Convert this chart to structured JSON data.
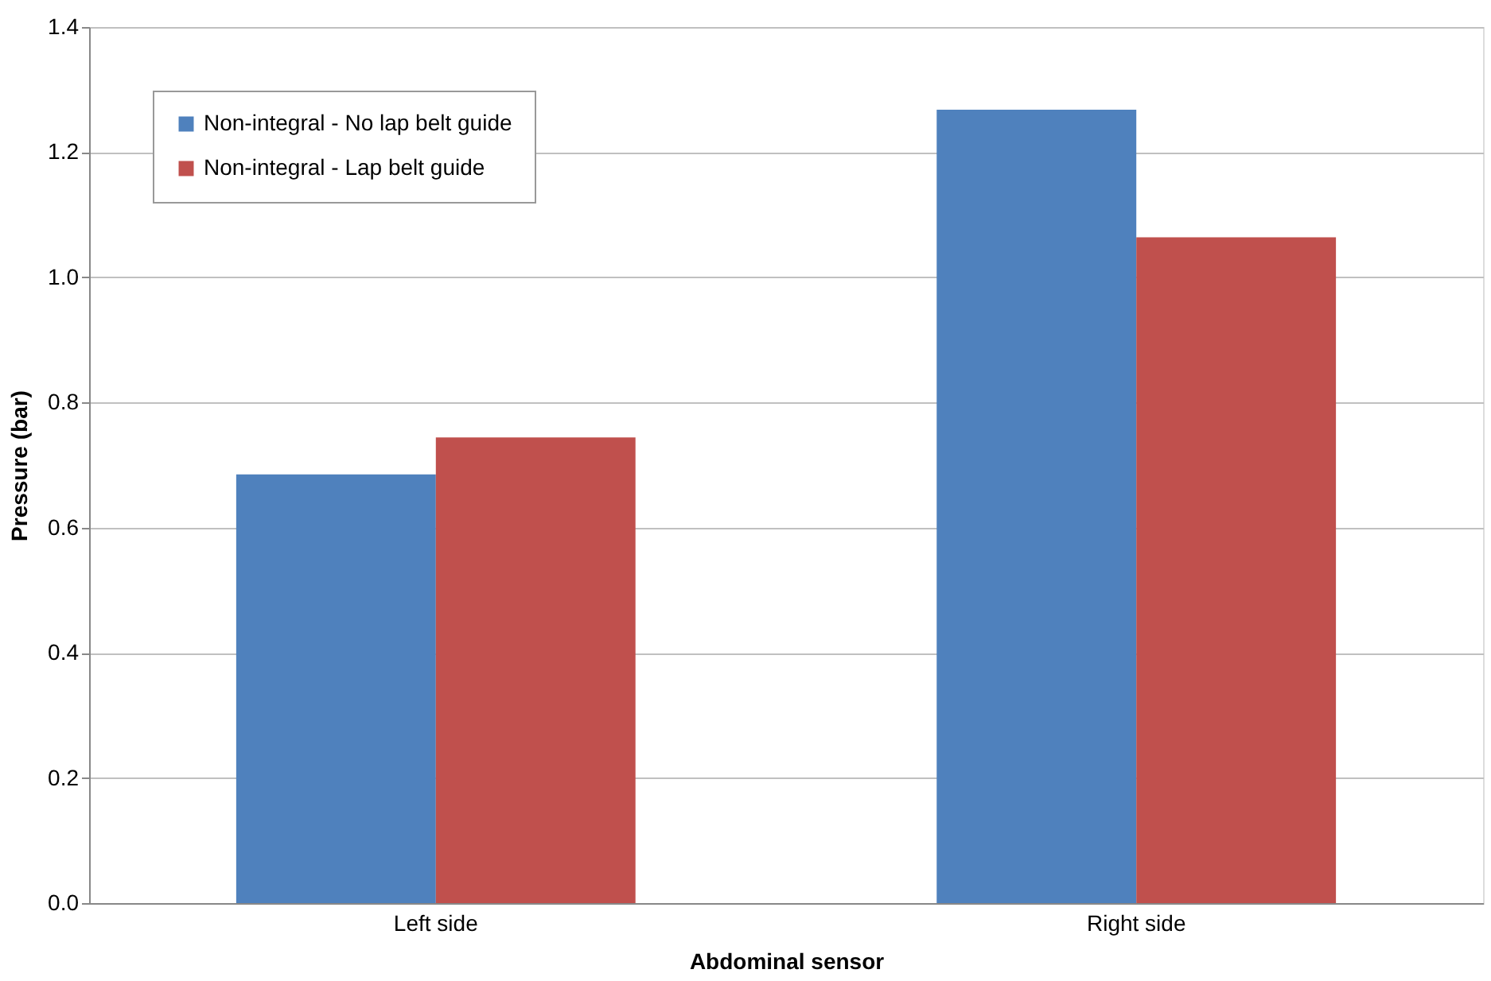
{
  "chart_data": {
    "type": "bar",
    "xlabel": "Abdominal sensor",
    "ylabel": "Pressure (bar)",
    "categories": [
      "Left side",
      "Right side"
    ],
    "series": [
      {
        "name": "Non-integral - No lap belt guide",
        "color": "#4f81bd",
        "values": [
          0.685,
          1.268
        ]
      },
      {
        "name": "Non-integral - Lap belt guide",
        "color": "#c0504d",
        "values": [
          0.744,
          1.064
        ]
      }
    ],
    "ylim": [
      0,
      1.4
    ],
    "yticks": [
      {
        "value": 0,
        "label": "0.0"
      },
      0.2,
      0.4,
      0.6,
      0.8,
      {
        "value": 1,
        "label": "1.0"
      },
      1.2,
      1.4
    ],
    "grid": "y",
    "legend": "top left"
  }
}
